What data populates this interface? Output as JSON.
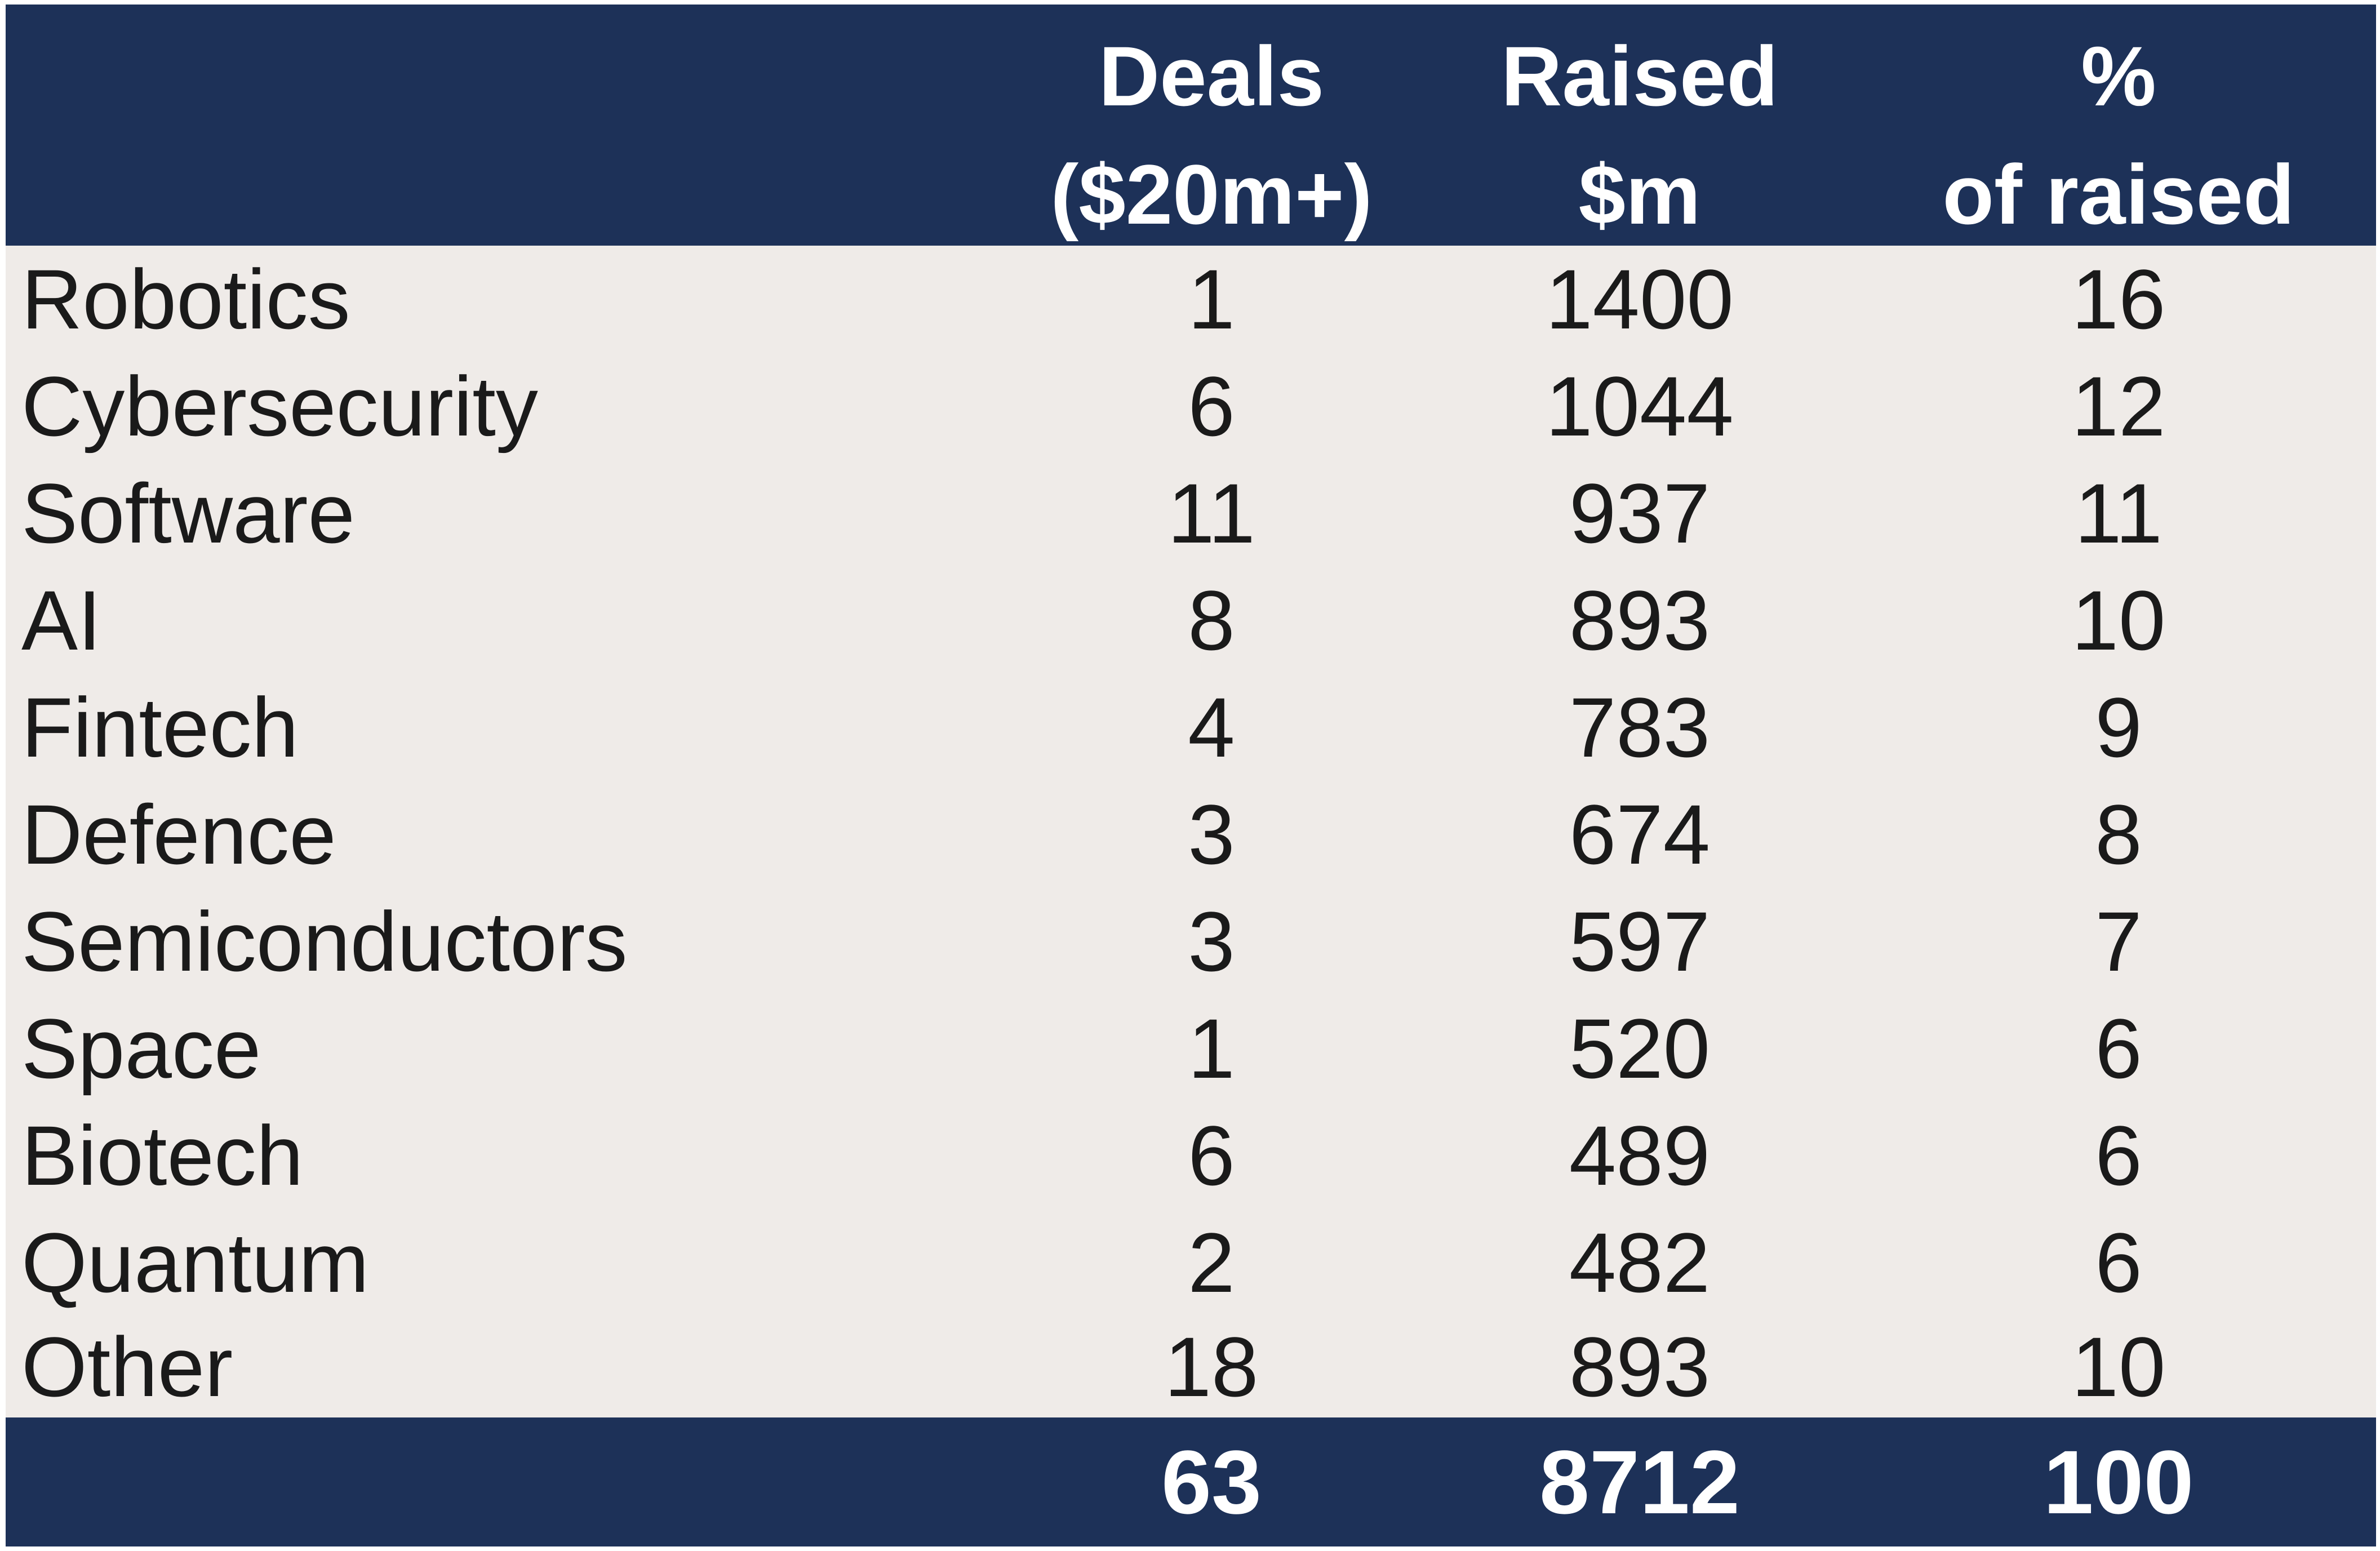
{
  "colors": {
    "header_bg": "#1d3158",
    "body_bg": "#efebe8",
    "header_text": "#ffffff",
    "body_text": "#1a1a1a"
  },
  "chart_data": {
    "type": "table",
    "columns": [
      {
        "line1": "Deals",
        "line2": "($20m+)"
      },
      {
        "line1": "Raised",
        "line2": "$m"
      },
      {
        "line1": "%",
        "line2": "of raised"
      }
    ],
    "rows": [
      {
        "category": "Robotics",
        "deals": "1",
        "raised": "1400",
        "pct": "16"
      },
      {
        "category": "Cybersecurity",
        "deals": "6",
        "raised": "1044",
        "pct": "12"
      },
      {
        "category": "Software",
        "deals": "11",
        "raised": "937",
        "pct": "11"
      },
      {
        "category": "AI",
        "deals": "8",
        "raised": "893",
        "pct": "10"
      },
      {
        "category": "Fintech",
        "deals": "4",
        "raised": "783",
        "pct": "9"
      },
      {
        "category": "Defence",
        "deals": "3",
        "raised": "674",
        "pct": "8"
      },
      {
        "category": "Semiconductors",
        "deals": "3",
        "raised": "597",
        "pct": "7"
      },
      {
        "category": "Space",
        "deals": "1",
        "raised": "520",
        "pct": "6"
      },
      {
        "category": "Biotech",
        "deals": "6",
        "raised": "489",
        "pct": "6"
      },
      {
        "category": "Quantum",
        "deals": "2",
        "raised": "482",
        "pct": "6"
      },
      {
        "category": "Other",
        "deals": "18",
        "raised": "893",
        "pct": "10"
      }
    ],
    "totals": {
      "deals": "63",
      "raised": "8712",
      "pct": "100"
    }
  }
}
